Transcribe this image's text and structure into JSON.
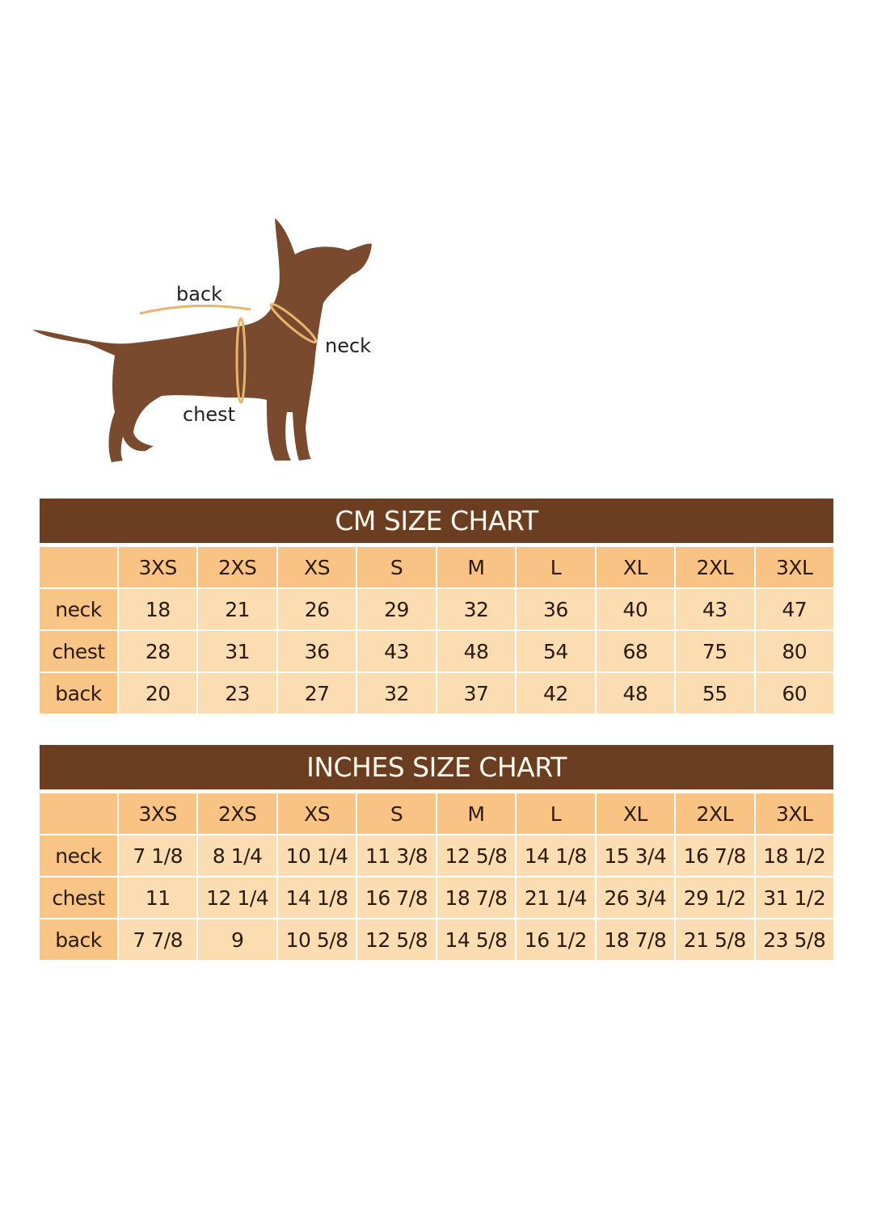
{
  "diagram": {
    "labels": {
      "back": "back",
      "neck": "neck",
      "chest": "chest"
    },
    "colors": {
      "dog": "#7a4a2e",
      "measure_line": "#e9b56e"
    }
  },
  "sizes": [
    "3XS",
    "2XS",
    "XS",
    "S",
    "M",
    "L",
    "XL",
    "2XL",
    "3XL"
  ],
  "cm_chart": {
    "title": "CM SIZE CHART",
    "rows": [
      {
        "label": "neck",
        "values": [
          "18",
          "21",
          "26",
          "29",
          "32",
          "36",
          "40",
          "43",
          "47"
        ]
      },
      {
        "label": "chest",
        "values": [
          "28",
          "31",
          "36",
          "43",
          "48",
          "54",
          "68",
          "75",
          "80"
        ]
      },
      {
        "label": "back",
        "values": [
          "20",
          "23",
          "27",
          "32",
          "37",
          "42",
          "48",
          "55",
          "60"
        ]
      }
    ]
  },
  "inch_chart": {
    "title": "INCHES SIZE CHART",
    "rows": [
      {
        "label": "neck",
        "values": [
          "7 1/8",
          "8 1/4",
          "10 1/4",
          "11 3/8",
          "12 5/8",
          "14 1/8",
          "15 3/4",
          "16 7/8",
          "18 1/2"
        ]
      },
      {
        "label": "chest",
        "values": [
          "11",
          "12 1/4",
          "14 1/8",
          "16 7/8",
          "18 7/8",
          "21 1/4",
          "26 3/4",
          "29 1/2",
          "31 1/2"
        ]
      },
      {
        "label": "back",
        "values": [
          "7 7/8",
          "9",
          "10 5/8",
          "12 5/8",
          "14 5/8",
          "16 1/2",
          "18 7/8",
          "21 5/8",
          "23 5/8"
        ]
      }
    ]
  },
  "colors": {
    "title_bar": "#6b3e22",
    "header": "#f9c384",
    "cell": "#fcdcb1"
  }
}
